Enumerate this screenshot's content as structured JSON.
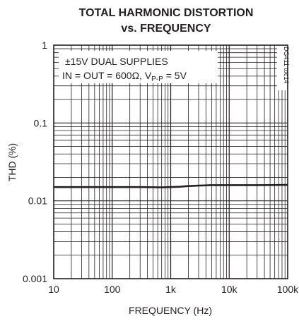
{
  "chart_data": {
    "type": "line",
    "title": "TOTAL HARMONIC DISTORTION",
    "subtitle": "vs. FREQUENCY",
    "xlabel": "FREQUENCY (Hz)",
    "ylabel": "THD (%)",
    "xscale": "log",
    "yscale": "log",
    "xlim": [
      10,
      100000
    ],
    "ylim": [
      0.001,
      1
    ],
    "grid": true,
    "x_tick_labels": [
      "10",
      "100",
      "1k",
      "10k",
      "100k"
    ],
    "y_tick_labels": [
      "1",
      "0.1",
      "0.01",
      "0.001"
    ],
    "annotation_line1": "±15V DUAL SUPPLIES",
    "annotation_line2_main": "IN = OUT = 600Ω, V",
    "annotation_line2_sub": "P-P",
    "annotation_line2_end": " = 5V",
    "figure_code": "DG411 toc14",
    "series": [
      {
        "x": [
          10,
          50,
          100,
          300,
          700,
          1000,
          1500,
          2000,
          3000,
          5000,
          10000,
          30000,
          100000
        ],
        "values": [
          0.015,
          0.015,
          0.015,
          0.015,
          0.0149,
          0.015,
          0.0152,
          0.0155,
          0.0157,
          0.0159,
          0.0159,
          0.0159,
          0.016
        ]
      }
    ],
    "colors": {
      "line": "#231f20",
      "grid": "#231f20"
    }
  }
}
